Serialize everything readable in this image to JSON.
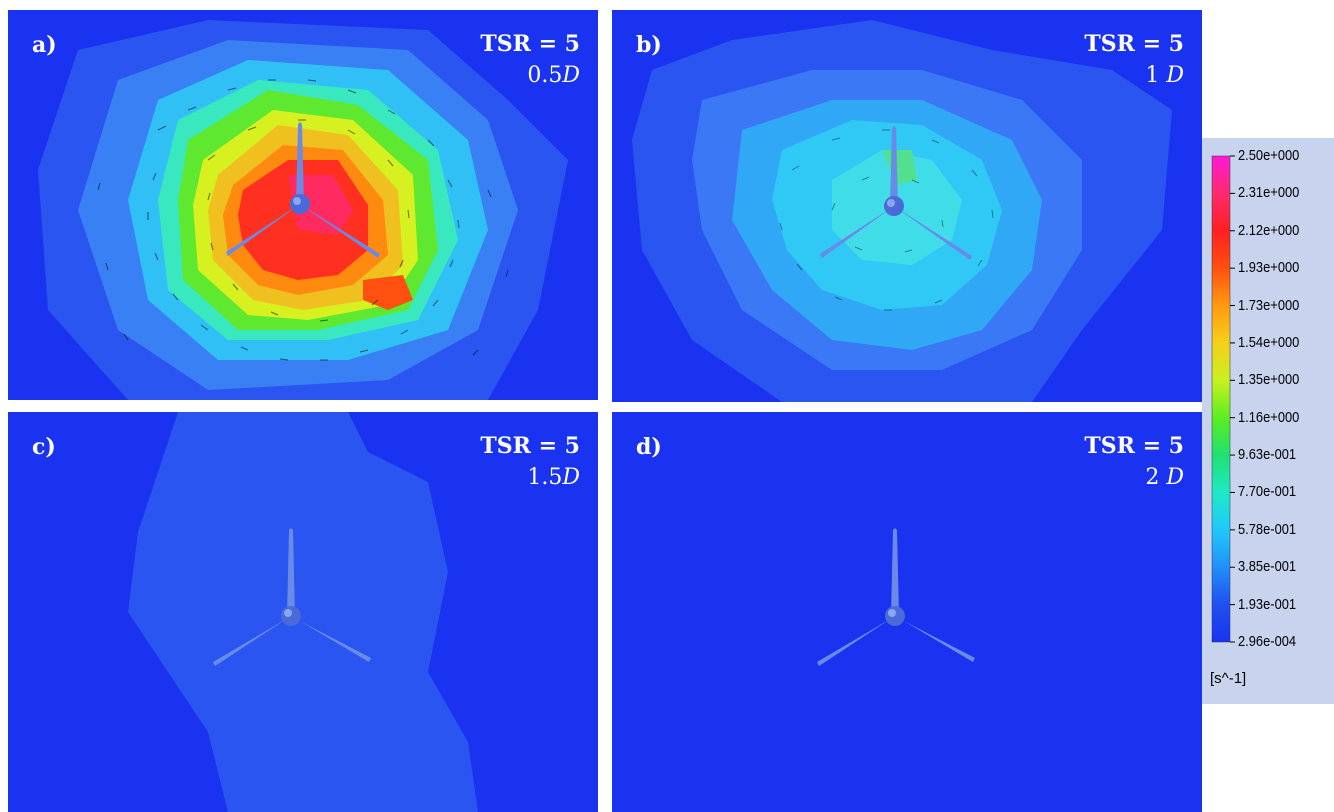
{
  "panels": [
    {
      "label": "a)",
      "tsr": "TSR = 5",
      "dist_num": "0.5",
      "dist_unit": "D",
      "intensity": "high"
    },
    {
      "label": "b)",
      "tsr": "TSR = 5",
      "dist_num": "1 ",
      "dist_unit": "D",
      "intensity": "medium"
    },
    {
      "label": "c)",
      "tsr": "TSR = 5",
      "dist_num": "1.5",
      "dist_unit": "D",
      "intensity": "low"
    },
    {
      "label": "d)",
      "tsr": "TSR = 5",
      "dist_num": "2 ",
      "dist_unit": "D",
      "intensity": "none"
    }
  ],
  "legend": {
    "ticks": [
      "2.50e+000",
      "2.31e+000",
      "2.12e+000",
      "1.93e+000",
      "1.73e+000",
      "1.54e+000",
      "1.35e+000",
      "1.16e+000",
      "9.63e-001",
      "7.70e-001",
      "5.78e-001",
      "3.85e-001",
      "1.93e-001",
      "2.96e-004"
    ],
    "unit": "[s^-1]",
    "colors": [
      "#ff19d6",
      "#ff2a6e",
      "#ff2020",
      "#ff5010",
      "#ff9a10",
      "#f5d01a",
      "#c8f020",
      "#5cee20",
      "#20e070",
      "#20e8c8",
      "#20c8f8",
      "#2090f8",
      "#2050f0",
      "#1a33f0"
    ]
  }
}
